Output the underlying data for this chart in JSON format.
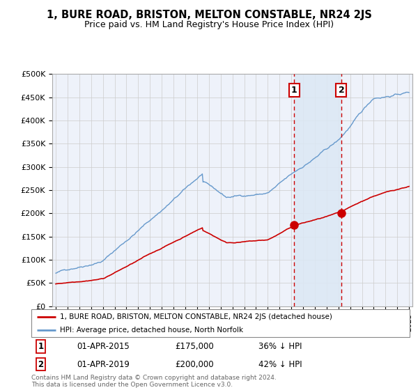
{
  "title": "1, BURE ROAD, BRISTON, MELTON CONSTABLE, NR24 2JS",
  "subtitle": "Price paid vs. HM Land Registry's House Price Index (HPI)",
  "ylim": [
    0,
    500000
  ],
  "yticks": [
    0,
    50000,
    100000,
    150000,
    200000,
    250000,
    300000,
    350000,
    400000,
    450000,
    500000
  ],
  "ytick_labels": [
    "£0",
    "£50K",
    "£100K",
    "£150K",
    "£200K",
    "£250K",
    "£300K",
    "£350K",
    "£400K",
    "£450K",
    "£500K"
  ],
  "background_color": "#ffffff",
  "plot_bg_color": "#eef2fa",
  "grid_color": "#cccccc",
  "sale1_date": 2015.25,
  "sale1_price": 175000,
  "sale1_label": "1",
  "sale2_date": 2019.25,
  "sale2_price": 200000,
  "sale2_label": "2",
  "red_line_color": "#cc0000",
  "blue_line_color": "#6699cc",
  "shade_color": "#dce8f5",
  "vline_color": "#cc0000",
  "legend_red": "1, BURE ROAD, BRISTON, MELTON CONSTABLE, NR24 2JS (detached house)",
  "legend_blue": "HPI: Average price, detached house, North Norfolk",
  "footer": "Contains HM Land Registry data © Crown copyright and database right 2024.\nThis data is licensed under the Open Government Licence v3.0.",
  "marker_box_color": "#cc0000",
  "xlim_left": 1994.7,
  "xlim_right": 2025.3
}
